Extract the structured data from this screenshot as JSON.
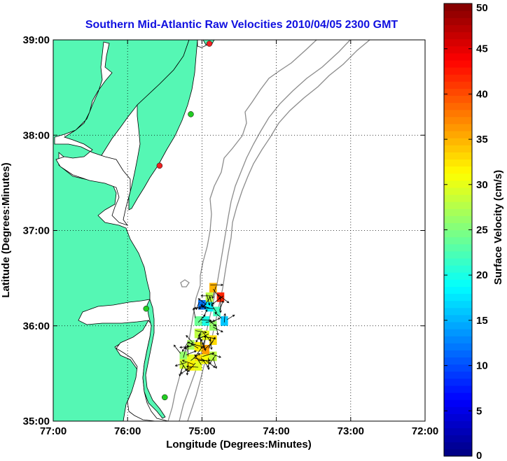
{
  "title": "Southern Mid-Atlantic Raw Velocities 2010/04/05 2300 GMT",
  "map": {
    "xlabel": "Longitude (Degrees:Minutes)",
    "ylabel": "Latitude (Degrees:Minutes)",
    "lon_range": [
      -77,
      -72
    ],
    "lat_range": [
      35,
      39
    ],
    "x_ticks": [
      {
        "value": -77,
        "label": "77:00"
      },
      {
        "value": -76,
        "label": "76:00"
      },
      {
        "value": -75,
        "label": "75:00"
      },
      {
        "value": -74,
        "label": "74:00"
      },
      {
        "value": -73,
        "label": "73:00"
      },
      {
        "value": -72,
        "label": "72:00"
      }
    ],
    "y_ticks": [
      {
        "value": 39,
        "label": "39:00"
      },
      {
        "value": 38,
        "label": "38:00"
      },
      {
        "value": 37,
        "label": "37:00"
      },
      {
        "value": 36,
        "label": "36:00"
      },
      {
        "value": 35,
        "label": "35:00"
      }
    ],
    "grid": "dotted",
    "colors": {
      "land": "#55f7b4",
      "coast": "#000000",
      "bathymetry": "#8c8c8c",
      "station_green": "#22cc22",
      "station_red": "#ee2222",
      "title": "#1010e0"
    },
    "stations": [
      {
        "lon": -74.9,
        "lat": 38.96,
        "status": "red"
      },
      {
        "lon": -75.15,
        "lat": 38.22,
        "status": "green"
      },
      {
        "lon": -75.57,
        "lat": 37.68,
        "status": "red"
      },
      {
        "lon": -75.75,
        "lat": 36.18,
        "status": "green"
      },
      {
        "lon": -75.5,
        "lat": 35.25,
        "status": "green"
      }
    ]
  },
  "colorbar": {
    "label": "Surface Velocity (cm/s)",
    "min": 0,
    "max": 50,
    "ticks": [
      0,
      5,
      10,
      15,
      20,
      25,
      30,
      35,
      40,
      45,
      50
    ],
    "colormap": "jet"
  },
  "chart_data": {
    "type": "heatmap",
    "title": "Southern Mid-Atlantic Raw Velocities 2010/04/05 2300 GMT",
    "xlabel": "Longitude (Degrees:Minutes)",
    "ylabel": "Latitude (Degrees:Minutes)",
    "xlim": [
      -77,
      -72
    ],
    "ylim": [
      35,
      39
    ],
    "color_scale": {
      "label": "Surface Velocity (cm/s)",
      "min": 0,
      "max": 50
    },
    "cells": [
      {
        "lon": -74.85,
        "lat": 36.4,
        "speed": 35
      },
      {
        "lon": -74.75,
        "lat": 36.3,
        "speed": 42
      },
      {
        "lon": -74.9,
        "lat": 36.3,
        "speed": 28
      },
      {
        "lon": -75.0,
        "lat": 36.22,
        "speed": 12
      },
      {
        "lon": -74.9,
        "lat": 36.2,
        "speed": 18
      },
      {
        "lon": -74.8,
        "lat": 36.15,
        "speed": 22
      },
      {
        "lon": -74.7,
        "lat": 36.05,
        "speed": 16
      },
      {
        "lon": -75.05,
        "lat": 36.05,
        "speed": 24
      },
      {
        "lon": -74.95,
        "lat": 36.05,
        "speed": 20
      },
      {
        "lon": -74.85,
        "lat": 36.0,
        "speed": 26
      },
      {
        "lon": -75.05,
        "lat": 35.92,
        "speed": 28
      },
      {
        "lon": -74.95,
        "lat": 35.9,
        "speed": 30
      },
      {
        "lon": -74.85,
        "lat": 35.85,
        "speed": 33
      },
      {
        "lon": -75.15,
        "lat": 35.8,
        "speed": 27
      },
      {
        "lon": -75.05,
        "lat": 35.78,
        "speed": 32
      },
      {
        "lon": -74.95,
        "lat": 35.75,
        "speed": 36
      },
      {
        "lon": -75.25,
        "lat": 35.68,
        "speed": 26
      },
      {
        "lon": -75.15,
        "lat": 35.65,
        "speed": 30
      },
      {
        "lon": -75.05,
        "lat": 35.65,
        "speed": 33
      },
      {
        "lon": -74.95,
        "lat": 35.65,
        "speed": 31
      },
      {
        "lon": -74.85,
        "lat": 35.68,
        "speed": 28
      },
      {
        "lon": -75.25,
        "lat": 35.6,
        "speed": 29
      },
      {
        "lon": -75.15,
        "lat": 35.58,
        "speed": 32
      },
      {
        "lon": -75.05,
        "lat": 35.58,
        "speed": 30
      }
    ]
  }
}
